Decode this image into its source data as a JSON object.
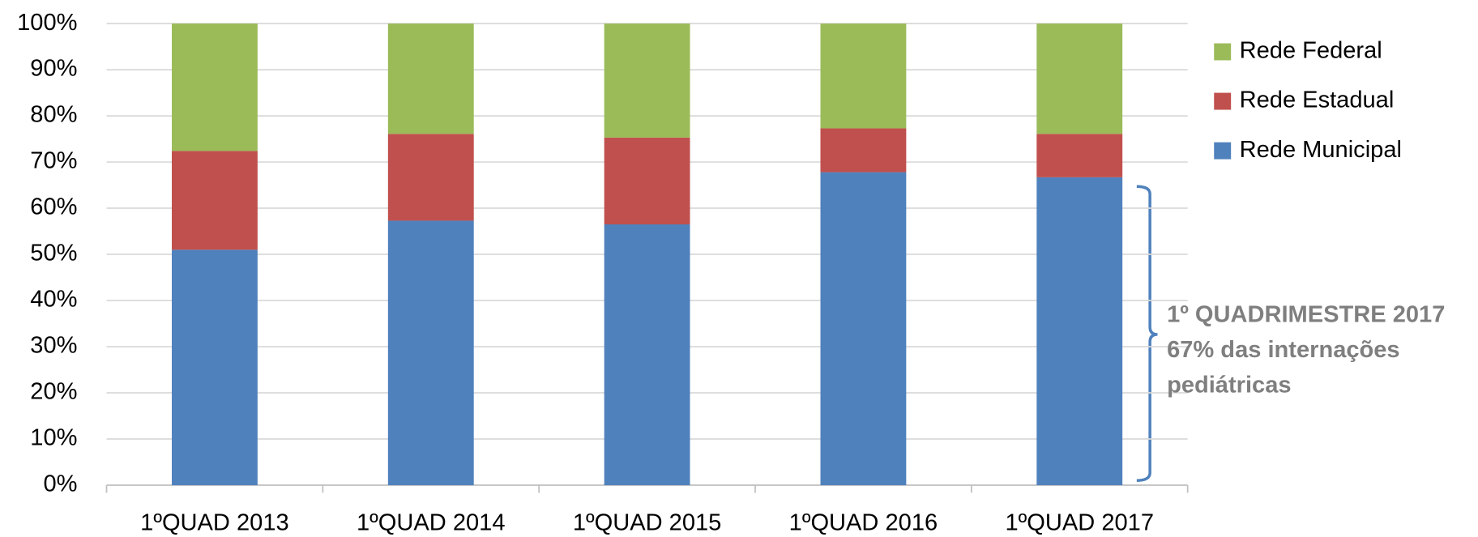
{
  "chart_data": {
    "type": "stacked_bar",
    "categories": [
      "1ºQUAD 2013",
      "1ºQUAD 2014",
      "1ºQUAD 2015",
      "1ºQUAD 2016",
      "1ºQUAD 2017"
    ],
    "series": [
      {
        "name": "Rede Municipal",
        "color": "#4f81bd",
        "values": [
          51.0,
          57.3,
          56.5,
          67.8,
          66.7
        ]
      },
      {
        "name": "Rede Estadual",
        "color": "#c0504d",
        "values": [
          21.4,
          18.8,
          18.8,
          9.5,
          9.4
        ]
      },
      {
        "name": "Rede Federal",
        "color": "#9bbb59",
        "values": [
          27.6,
          23.9,
          24.7,
          22.7,
          23.9
        ]
      }
    ],
    "ylim": [
      0,
      100
    ],
    "yticks": [
      {
        "value": 0,
        "label": "0%"
      },
      {
        "value": 10,
        "label": "10%"
      },
      {
        "value": 20,
        "label": "20%"
      },
      {
        "value": 30,
        "label": "30%"
      },
      {
        "value": 40,
        "label": "40%"
      },
      {
        "value": 50,
        "label": "50%"
      },
      {
        "value": 60,
        "label": "60%"
      },
      {
        "value": 70,
        "label": "70%"
      },
      {
        "value": 80,
        "label": "80%"
      },
      {
        "value": 90,
        "label": "90%"
      },
      {
        "value": 100,
        "label": "100%"
      }
    ],
    "grid": true,
    "legend": "right",
    "annotation": [
      "1º QUADRIMESTRE 2017",
      "67% das internações",
      "pediátricas"
    ]
  }
}
